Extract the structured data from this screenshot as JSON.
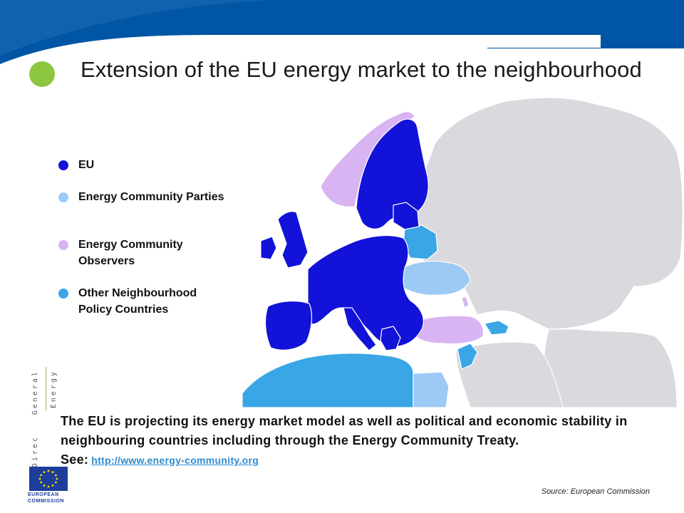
{
  "header": {
    "title": "Extension of the EU energy market to the neighbourhood",
    "brand_color": "#0055a4",
    "bullet_color": "#8dc63f"
  },
  "legend": {
    "items": [
      {
        "label": "EU",
        "color": "#1212d8"
      },
      {
        "label": "Energy Community Parties",
        "color": "#9ccaf5"
      },
      {
        "label": "Energy Community Observers",
        "color": "#d8b4f2"
      },
      {
        "label": "Other Neighbourhood Policy Countries",
        "color": "#3aa6e6"
      }
    ]
  },
  "map": {
    "region": "Europe and neighbourhood",
    "other_land_color": "#d9d9de",
    "sea_color": "#ffffff"
  },
  "sidebar": {
    "word_1": "General",
    "word_2": "Energy",
    "word_3": "Direc"
  },
  "body": {
    "text": "The EU is projecting its energy market model as well as political and economic stability in neighbouring countries including through the Energy Community Treaty. See:",
    "link_text": "http://www.energy-community.org"
  },
  "logo": {
    "line_1": "EUROPEAN",
    "line_2": "COMMISSION"
  },
  "source": "Source: European Commission"
}
